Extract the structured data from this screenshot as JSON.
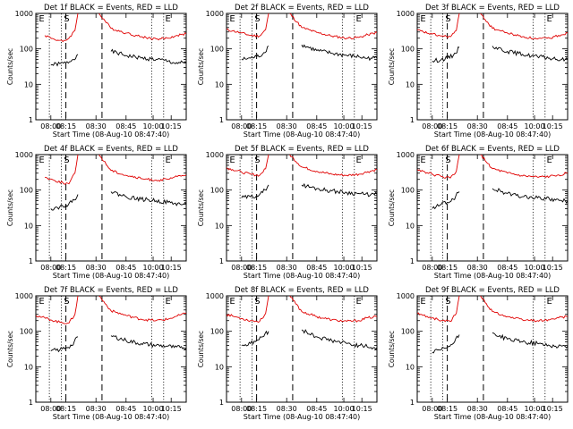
{
  "common": {
    "ylabel": "Counts/sec",
    "xlabel": "Start Time (08-Aug-10 08:47:40)",
    "x_ticklabels": [
      "08:00",
      "08:15",
      "08:30",
      "08:45",
      "10:00",
      "10:15"
    ],
    "y_ticklabels": [
      "1",
      "10",
      "100",
      "1000"
    ],
    "marker_labels": {
      "E1": "E",
      "S": "S",
      "E2": "E"
    },
    "colors": {
      "events": "#000000",
      "lld": "#e00000"
    }
  },
  "chart_data": [
    {
      "type": "line",
      "title": "Det 1f BLACK = Events, RED = LLD",
      "ylim": [
        1,
        1000
      ],
      "yscale": "log",
      "series": [
        {
          "name": "Events",
          "color": "#000000",
          "x": [
            0.0,
            0.06,
            0.1,
            0.16,
            0.2,
            0.24,
            0.28,
            0.32,
            0.4,
            0.5,
            0.6,
            0.7,
            0.8,
            0.88,
            0.92,
            0.96,
            1.0
          ],
          "values": [
            null,
            null,
            35,
            38,
            40,
            48,
            70,
            null,
            null,
            85,
            65,
            55,
            50,
            45,
            40,
            40,
            40
          ]
        },
        {
          "name": "LLD",
          "color": "#e00000",
          "x": [
            0.0,
            0.06,
            0.12,
            0.18,
            0.22,
            0.26,
            0.28,
            0.3,
            0.42,
            0.5,
            0.6,
            0.7,
            0.8,
            0.88,
            0.94,
            1.0
          ],
          "values": [
            null,
            240,
            190,
            160,
            200,
            330,
            1000,
            null,
            1000,
            380,
            280,
            220,
            190,
            200,
            240,
            270
          ]
        }
      ]
    },
    {
      "type": "line",
      "title": "Det 2f BLACK = Events, RED = LLD",
      "ylim": [
        1,
        1000
      ],
      "yscale": "log",
      "series": [
        {
          "name": "Events",
          "color": "#000000",
          "x": [
            0.0,
            0.1,
            0.16,
            0.2,
            0.24,
            0.28,
            0.32,
            0.4,
            0.5,
            0.6,
            0.7,
            0.8,
            0.88,
            0.92,
            0.96,
            1.0
          ],
          "values": [
            null,
            50,
            55,
            60,
            70,
            120,
            null,
            null,
            130,
            90,
            75,
            65,
            60,
            55,
            55,
            55
          ]
        },
        {
          "name": "LLD",
          "color": "#e00000",
          "x": [
            0.0,
            0.04,
            0.1,
            0.16,
            0.22,
            0.26,
            0.28,
            0.3,
            0.42,
            0.5,
            0.6,
            0.7,
            0.8,
            0.88,
            0.94,
            1.0
          ],
          "values": [
            350,
            320,
            280,
            240,
            230,
            350,
            1000,
            null,
            1000,
            400,
            290,
            230,
            200,
            210,
            250,
            290
          ]
        }
      ]
    },
    {
      "type": "line",
      "title": "Det 3f BLACK = Events, RED = LLD",
      "ylim": [
        1,
        1000
      ],
      "yscale": "log",
      "series": [
        {
          "name": "Events",
          "color": "#000000",
          "x": [
            0.0,
            0.1,
            0.16,
            0.2,
            0.24,
            0.28,
            0.32,
            0.4,
            0.5,
            0.6,
            0.7,
            0.8,
            0.88,
            0.92,
            0.96,
            1.0
          ],
          "values": [
            null,
            45,
            50,
            55,
            65,
            110,
            null,
            null,
            120,
            85,
            70,
            60,
            55,
            50,
            50,
            50
          ]
        },
        {
          "name": "LLD",
          "color": "#e00000",
          "x": [
            0.0,
            0.04,
            0.1,
            0.16,
            0.22,
            0.26,
            0.28,
            0.3,
            0.42,
            0.5,
            0.6,
            0.7,
            0.8,
            0.88,
            0.94,
            1.0
          ],
          "values": [
            340,
            300,
            260,
            230,
            220,
            330,
            1000,
            null,
            1000,
            380,
            280,
            220,
            190,
            200,
            240,
            280
          ]
        }
      ]
    },
    {
      "type": "line",
      "title": "Det 4f BLACK = Events, RED = LLD",
      "ylim": [
        1,
        1000
      ],
      "yscale": "log",
      "series": [
        {
          "name": "Events",
          "color": "#000000",
          "x": [
            0.0,
            0.1,
            0.16,
            0.2,
            0.24,
            0.28,
            0.32,
            0.4,
            0.5,
            0.6,
            0.7,
            0.8,
            0.88,
            0.92,
            0.96,
            1.0
          ],
          "values": [
            null,
            30,
            34,
            38,
            45,
            75,
            null,
            null,
            90,
            65,
            55,
            50,
            45,
            42,
            40,
            40
          ]
        },
        {
          "name": "LLD",
          "color": "#e00000",
          "x": [
            0.0,
            0.06,
            0.12,
            0.18,
            0.22,
            0.26,
            0.28,
            0.3,
            0.42,
            0.5,
            0.6,
            0.7,
            0.8,
            0.88,
            0.94,
            1.0
          ],
          "values": [
            null,
            230,
            190,
            160,
            150,
            300,
            1000,
            null,
            1000,
            360,
            260,
            210,
            190,
            200,
            240,
            270
          ]
        }
      ]
    },
    {
      "type": "line",
      "title": "Det 5f BLACK = Events, RED = LLD",
      "ylim": [
        1,
        1000
      ],
      "yscale": "log",
      "series": [
        {
          "name": "Events",
          "color": "#000000",
          "x": [
            0.0,
            0.1,
            0.16,
            0.2,
            0.24,
            0.28,
            0.32,
            0.4,
            0.5,
            0.6,
            0.7,
            0.8,
            0.88,
            0.92,
            0.96,
            1.0
          ],
          "values": [
            null,
            60,
            65,
            70,
            85,
            140,
            null,
            null,
            140,
            110,
            95,
            85,
            80,
            75,
            75,
            75
          ]
        },
        {
          "name": "LLD",
          "color": "#e00000",
          "x": [
            0.0,
            0.04,
            0.1,
            0.16,
            0.22,
            0.26,
            0.28,
            0.3,
            0.42,
            0.5,
            0.6,
            0.7,
            0.8,
            0.88,
            0.94,
            1.0
          ],
          "values": [
            420,
            380,
            320,
            280,
            260,
            400,
            1000,
            null,
            1000,
            450,
            340,
            280,
            260,
            280,
            330,
            380
          ]
        }
      ]
    },
    {
      "type": "line",
      "title": "Det 6f BLACK = Events, RED = LLD",
      "ylim": [
        1,
        1000
      ],
      "yscale": "log",
      "series": [
        {
          "name": "Events",
          "color": "#000000",
          "x": [
            0.0,
            0.1,
            0.16,
            0.2,
            0.24,
            0.28,
            0.32,
            0.4,
            0.5,
            0.6,
            0.7,
            0.8,
            0.88,
            0.92,
            0.96,
            1.0
          ],
          "values": [
            null,
            30,
            40,
            45,
            55,
            90,
            null,
            null,
            110,
            80,
            65,
            60,
            55,
            52,
            50,
            50
          ]
        },
        {
          "name": "LLD",
          "color": "#e00000",
          "x": [
            0.0,
            0.04,
            0.1,
            0.16,
            0.22,
            0.26,
            0.28,
            0.3,
            0.42,
            0.5,
            0.6,
            0.7,
            0.8,
            0.88,
            0.94,
            1.0
          ],
          "values": [
            380,
            340,
            280,
            240,
            220,
            340,
            1000,
            null,
            1000,
            400,
            300,
            250,
            230,
            240,
            270,
            300
          ]
        }
      ]
    },
    {
      "type": "line",
      "title": "Det 7f BLACK = Events, RED = LLD",
      "ylim": [
        1,
        1000
      ],
      "yscale": "log",
      "series": [
        {
          "name": "Events",
          "color": "#000000",
          "x": [
            0.0,
            0.1,
            0.16,
            0.2,
            0.24,
            0.28,
            0.32,
            0.4,
            0.5,
            0.6,
            0.7,
            0.8,
            0.88,
            0.92,
            0.96,
            1.0
          ],
          "values": [
            null,
            28,
            30,
            35,
            40,
            70,
            null,
            null,
            75,
            55,
            45,
            40,
            38,
            35,
            35,
            35
          ]
        },
        {
          "name": "LLD",
          "color": "#e00000",
          "x": [
            0.0,
            0.04,
            0.1,
            0.16,
            0.22,
            0.26,
            0.28,
            0.3,
            0.42,
            0.5,
            0.6,
            0.7,
            0.8,
            0.88,
            0.94,
            1.0
          ],
          "values": [
            280,
            250,
            210,
            180,
            170,
            300,
            1000,
            null,
            1000,
            380,
            280,
            220,
            200,
            220,
            270,
            320
          ]
        }
      ]
    },
    {
      "type": "line",
      "title": "Det 8f BLACK = Events, RED = LLD",
      "ylim": [
        1,
        1000
      ],
      "yscale": "log",
      "series": [
        {
          "name": "Events",
          "color": "#000000",
          "x": [
            0.0,
            0.1,
            0.16,
            0.2,
            0.24,
            0.28,
            0.32,
            0.4,
            0.5,
            0.6,
            0.7,
            0.8,
            0.88,
            0.92,
            0.96,
            1.0
          ],
          "values": [
            null,
            40,
            45,
            55,
            70,
            100,
            null,
            null,
            110,
            70,
            55,
            45,
            40,
            38,
            35,
            35
          ]
        },
        {
          "name": "LLD",
          "color": "#e00000",
          "x": [
            0.0,
            0.04,
            0.1,
            0.16,
            0.22,
            0.26,
            0.28,
            0.3,
            0.42,
            0.5,
            0.6,
            0.7,
            0.8,
            0.88,
            0.94,
            1.0
          ],
          "values": [
            300,
            270,
            230,
            200,
            190,
            320,
            1000,
            null,
            1000,
            360,
            260,
            210,
            190,
            200,
            240,
            260
          ]
        }
      ]
    },
    {
      "type": "line",
      "title": "Det 9f BLACK = Events, RED = LLD",
      "ylim": [
        1,
        1000
      ],
      "yscale": "log",
      "series": [
        {
          "name": "Events",
          "color": "#000000",
          "x": [
            0.0,
            0.1,
            0.16,
            0.2,
            0.24,
            0.28,
            0.32,
            0.4,
            0.5,
            0.6,
            0.7,
            0.8,
            0.88,
            0.92,
            0.96,
            1.0
          ],
          "values": [
            null,
            25,
            30,
            35,
            45,
            80,
            null,
            null,
            90,
            60,
            50,
            45,
            40,
            38,
            38,
            38
          ]
        },
        {
          "name": "LLD",
          "color": "#e00000",
          "x": [
            0.0,
            0.04,
            0.1,
            0.16,
            0.22,
            0.26,
            0.28,
            0.3,
            0.42,
            0.5,
            0.6,
            0.7,
            0.8,
            0.88,
            0.94,
            1.0
          ],
          "values": [
            320,
            280,
            240,
            200,
            190,
            320,
            1000,
            null,
            1000,
            360,
            260,
            210,
            200,
            210,
            240,
            260
          ]
        }
      ]
    }
  ]
}
